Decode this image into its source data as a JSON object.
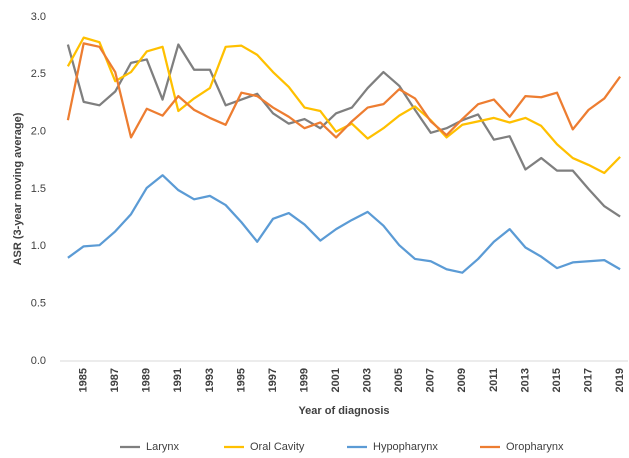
{
  "chart_data": {
    "type": "line",
    "x": [
      1984,
      1985,
      1986,
      1987,
      1988,
      1989,
      1990,
      1991,
      1992,
      1993,
      1994,
      1995,
      1996,
      1997,
      1998,
      1999,
      2000,
      2001,
      2002,
      2003,
      2004,
      2005,
      2006,
      2007,
      2008,
      2009,
      2010,
      2011,
      2012,
      2013,
      2014,
      2015,
      2016,
      2017,
      2018,
      2019
    ],
    "xlim": [
      1983.5,
      2019.5
    ],
    "xticks": [
      1985,
      1987,
      1989,
      1991,
      1993,
      1995,
      1997,
      1999,
      2001,
      2003,
      2005,
      2007,
      2009,
      2011,
      2013,
      2015,
      2017,
      2019
    ],
    "ylim": [
      0,
      3
    ],
    "yticks": [
      {
        "value": 0,
        "label": "0.0"
      },
      0.5,
      {
        "value": 1,
        "label": "1.0"
      },
      1.5,
      {
        "value": 2,
        "label": "2.0"
      },
      2.5,
      {
        "value": 3,
        "label": "3.0"
      }
    ],
    "x_label": "Year of diagnosis",
    "y_label": "ASR (3-year moving average)",
    "series": [
      {
        "name": "Larynx",
        "color": "#7f7f7f",
        "values": [
          2.76,
          2.26,
          2.23,
          2.35,
          2.6,
          2.63,
          2.28,
          2.76,
          2.54,
          2.54,
          2.23,
          2.28,
          2.33,
          2.16,
          2.07,
          2.11,
          2.03,
          2.16,
          2.21,
          2.38,
          2.52,
          2.4,
          2.19,
          1.99,
          2.03,
          2.1,
          2.15,
          1.93,
          1.96,
          1.67,
          1.77,
          1.66,
          1.66,
          1.5,
          1.35,
          1.26
        ]
      },
      {
        "name": "Oral Cavity",
        "color": "#ffc000",
        "values": [
          2.57,
          2.82,
          2.78,
          2.44,
          2.52,
          2.7,
          2.74,
          2.18,
          2.29,
          2.38,
          2.74,
          2.75,
          2.67,
          2.52,
          2.39,
          2.21,
          2.18,
          2.0,
          2.07,
          1.94,
          2.03,
          2.14,
          2.22,
          2.1,
          1.95,
          2.06,
          2.09,
          2.12,
          2.08,
          2.12,
          2.05,
          1.89,
          1.77,
          1.71,
          1.64,
          1.78
        ]
      },
      {
        "name": "Hypopharynx",
        "color": "#5b9bd5",
        "values": [
          0.9,
          1.0,
          1.01,
          1.13,
          1.28,
          1.51,
          1.62,
          1.49,
          1.41,
          1.44,
          1.36,
          1.21,
          1.04,
          1.24,
          1.29,
          1.19,
          1.05,
          1.15,
          1.23,
          1.3,
          1.18,
          1.01,
          0.89,
          0.87,
          0.8,
          0.77,
          0.89,
          1.04,
          1.15,
          0.99,
          0.91,
          0.81,
          0.86,
          0.87,
          0.88,
          0.8
        ]
      },
      {
        "name": "Oropharynx",
        "color": "#ed7d31",
        "values": [
          2.1,
          2.77,
          2.74,
          2.52,
          1.95,
          2.2,
          2.14,
          2.31,
          2.19,
          2.12,
          2.06,
          2.34,
          2.31,
          2.21,
          2.13,
          2.03,
          2.08,
          1.95,
          2.09,
          2.21,
          2.24,
          2.37,
          2.29,
          2.09,
          1.97,
          2.11,
          2.24,
          2.28,
          2.13,
          2.31,
          2.3,
          2.34,
          2.02,
          2.19,
          2.29,
          2.48
        ]
      }
    ]
  }
}
